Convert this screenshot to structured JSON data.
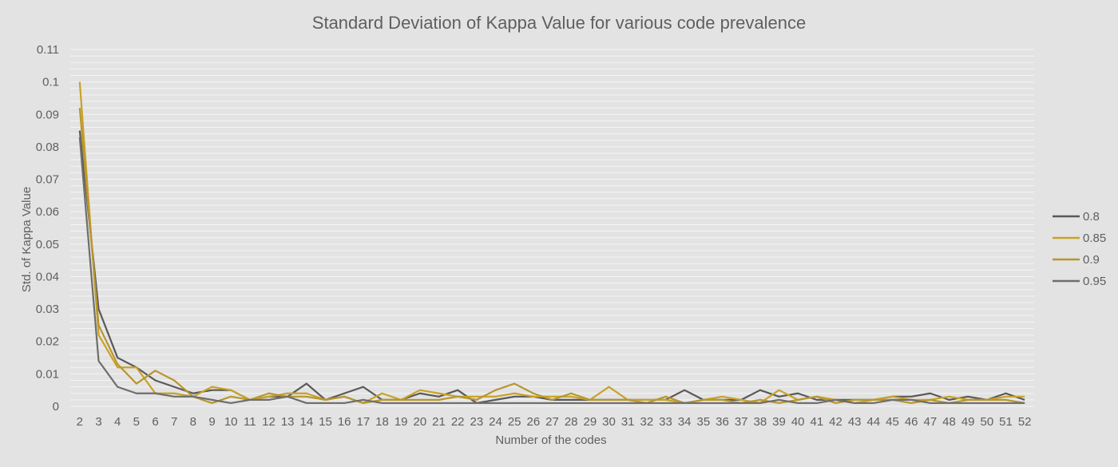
{
  "chart_data": {
    "type": "line",
    "title": "Standard Deviation of Kappa Value for various code prevalence",
    "xlabel": "Number of the codes",
    "ylabel": "Std. of Kappa Value",
    "x": [
      2,
      3,
      4,
      5,
      6,
      7,
      8,
      9,
      10,
      11,
      12,
      13,
      14,
      15,
      16,
      17,
      18,
      19,
      20,
      21,
      22,
      23,
      24,
      25,
      26,
      27,
      28,
      29,
      30,
      31,
      32,
      33,
      34,
      35,
      36,
      37,
      38,
      39,
      40,
      41,
      42,
      43,
      44,
      45,
      46,
      47,
      48,
      49,
      50,
      51,
      52
    ],
    "yticks": [
      0,
      0.01,
      0.02,
      0.03,
      0.04,
      0.05,
      0.06,
      0.07,
      0.08,
      0.09,
      0.1,
      0.11
    ],
    "ytick_labels": [
      "0",
      "0.01",
      "0.02",
      "0.03",
      "0.04",
      "0.05",
      "0.06",
      "0.07",
      "0.08",
      "0.09",
      "0.1",
      "0.11"
    ],
    "ylim": [
      0,
      0.11
    ],
    "grid": true,
    "minor_grid_step": 0.002,
    "legend_position": "right",
    "series": [
      {
        "name": "0.8",
        "color": "#595959",
        "values": [
          0.085,
          0.03,
          0.015,
          0.012,
          0.008,
          0.006,
          0.004,
          0.005,
          0.005,
          0.002,
          0.003,
          0.003,
          0.007,
          0.002,
          0.004,
          0.006,
          0.002,
          0.002,
          0.004,
          0.003,
          0.005,
          0.001,
          0.002,
          0.003,
          0.003,
          0.002,
          0.002,
          0.002,
          0.002,
          0.002,
          0.002,
          0.002,
          0.005,
          0.002,
          0.002,
          0.002,
          0.005,
          0.003,
          0.004,
          0.002,
          0.002,
          0.002,
          0.002,
          0.003,
          0.003,
          0.004,
          0.002,
          0.003,
          0.002,
          0.004,
          0.002
        ]
      },
      {
        "name": "0.85",
        "color": "#c9a227",
        "values": [
          0.1,
          0.022,
          0.012,
          0.012,
          0.004,
          0.004,
          0.003,
          0.006,
          0.005,
          0.002,
          0.003,
          0.004,
          0.004,
          0.002,
          0.003,
          0.001,
          0.004,
          0.002,
          0.005,
          0.004,
          0.003,
          0.003,
          0.003,
          0.004,
          0.003,
          0.003,
          0.003,
          0.002,
          0.006,
          0.002,
          0.002,
          0.002,
          0.001,
          0.002,
          0.003,
          0.002,
          0.001,
          0.005,
          0.002,
          0.003,
          0.002,
          0.001,
          0.002,
          0.003,
          0.002,
          0.002,
          0.003,
          0.002,
          0.002,
          0.003,
          0.003
        ]
      },
      {
        "name": "0.9",
        "color": "#b8962e",
        "values": [
          0.092,
          0.025,
          0.013,
          0.007,
          0.011,
          0.008,
          0.003,
          0.001,
          0.003,
          0.002,
          0.004,
          0.003,
          0.003,
          0.002,
          0.003,
          0.001,
          0.002,
          0.002,
          0.002,
          0.002,
          0.003,
          0.002,
          0.005,
          0.007,
          0.004,
          0.002,
          0.004,
          0.002,
          0.002,
          0.002,
          0.001,
          0.003,
          0.001,
          0.002,
          0.002,
          0.001,
          0.002,
          0.001,
          0.002,
          0.003,
          0.001,
          0.002,
          0.002,
          0.002,
          0.001,
          0.002,
          0.001,
          0.002,
          0.002,
          0.002,
          0.001
        ]
      },
      {
        "name": "0.95",
        "color": "#6e6e6e",
        "values": [
          0.083,
          0.014,
          0.006,
          0.004,
          0.004,
          0.003,
          0.003,
          0.002,
          0.001,
          0.002,
          0.002,
          0.003,
          0.001,
          0.001,
          0.001,
          0.002,
          0.001,
          0.001,
          0.001,
          0.001,
          0.001,
          0.001,
          0.001,
          0.001,
          0.001,
          0.001,
          0.001,
          0.001,
          0.001,
          0.001,
          0.001,
          0.001,
          0.001,
          0.001,
          0.001,
          0.001,
          0.001,
          0.002,
          0.001,
          0.001,
          0.002,
          0.001,
          0.001,
          0.002,
          0.002,
          0.001,
          0.001,
          0.001,
          0.001,
          0.001,
          0.001
        ]
      }
    ]
  }
}
